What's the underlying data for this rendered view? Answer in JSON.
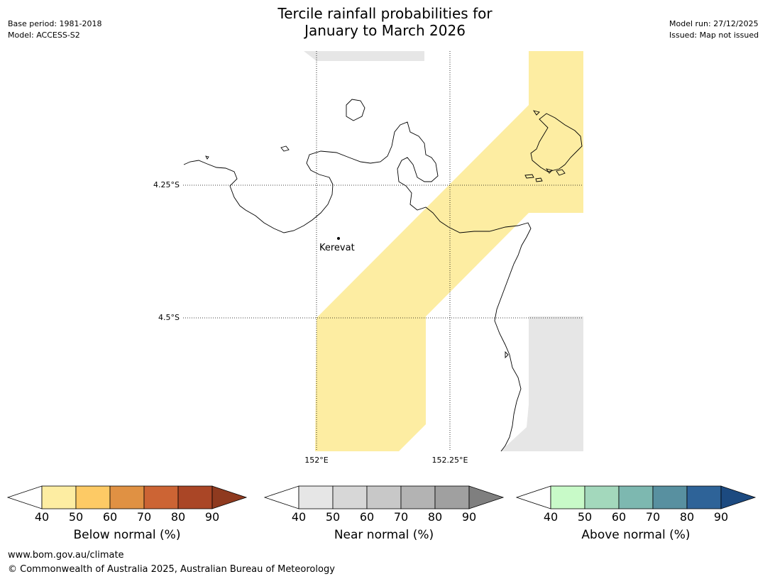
{
  "title": {
    "line1": "Tercile rainfall probabilities for",
    "line2": "January to March 2026"
  },
  "meta_left": {
    "base_period": "Base period: 1981-2018",
    "model": "Model: ACCESS-S2"
  },
  "meta_right": {
    "model_run": "Model run: 27/12/2025",
    "issued": "Issued: Map not issued"
  },
  "map": {
    "lat_labels": [
      "4.25°S",
      "4.5°S"
    ],
    "lon_labels": [
      "152°E",
      "152.25°E"
    ],
    "place": {
      "name": "Kerevat"
    }
  },
  "colorbars": [
    {
      "name": "below",
      "label": "Below normal (%)",
      "ticks": [
        "40",
        "50",
        "60",
        "70",
        "80",
        "90"
      ],
      "colors": [
        "#fdeda2",
        "#fdca65",
        "#e09143",
        "#cc6434",
        "#aa4626"
      ],
      "over_color": "#8f3a1f"
    },
    {
      "name": "near",
      "label": "Near normal (%)",
      "ticks": [
        "40",
        "50",
        "60",
        "70",
        "80",
        "90"
      ],
      "colors": [
        "#e6e6e6",
        "#d7d7d7",
        "#c8c8c8",
        "#b3b3b3",
        "#a0a0a0"
      ],
      "over_color": "#7f7f7f"
    },
    {
      "name": "above",
      "label": "Above normal (%)",
      "ticks": [
        "40",
        "50",
        "60",
        "70",
        "80",
        "90"
      ],
      "colors": [
        "#c8fac8",
        "#a3d8bc",
        "#7db8b0",
        "#5890a0",
        "#2e6398"
      ],
      "over_color": "#1c4a80"
    }
  ],
  "footer": {
    "url": "www.bom.gov.au/climate",
    "copyright": "© Commonwealth of Australia 2025, Australian Bureau of Meteorology"
  }
}
